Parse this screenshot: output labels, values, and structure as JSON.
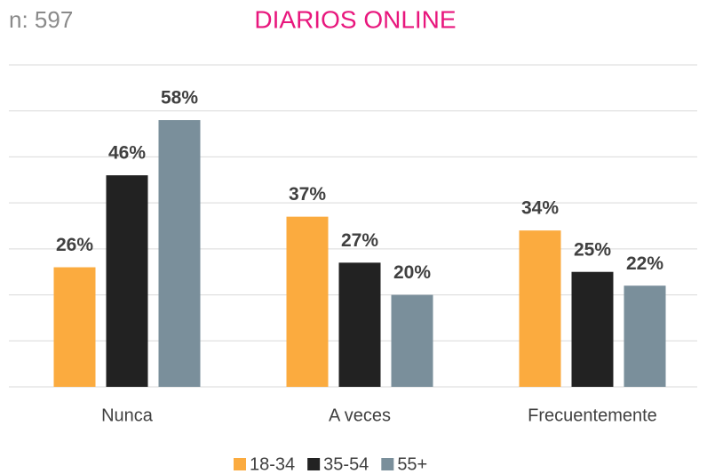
{
  "chart_data": {
    "type": "bar",
    "title": "DIARIOS ONLINE",
    "subtitle": "n: 597",
    "categories": [
      "Nunca",
      "A veces",
      "Frecuentemente"
    ],
    "series": [
      {
        "name": "18-34",
        "color": "#fbab3f",
        "values": [
          26,
          37,
          34
        ],
        "value_labels": [
          "26%",
          "37%",
          "34%"
        ]
      },
      {
        "name": "35-54",
        "color": "#222222",
        "values": [
          46,
          27,
          25
        ],
        "value_labels": [
          "46%",
          "27%",
          "25%"
        ]
      },
      {
        "name": "55+",
        "color": "#7a8f9b",
        "values": [
          58,
          20,
          22
        ],
        "value_labels": [
          "58%",
          "20%",
          "22%"
        ]
      }
    ],
    "ylim": [
      0,
      70
    ],
    "yticks": [
      0,
      10,
      20,
      30,
      40,
      50,
      60,
      70
    ],
    "grid": true,
    "legend": "bottom"
  }
}
